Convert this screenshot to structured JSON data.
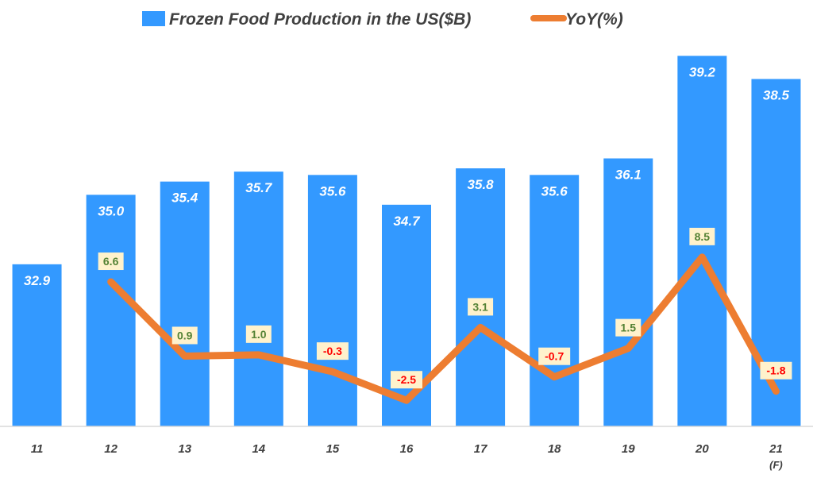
{
  "chart_data": {
    "type": "bar",
    "title": "",
    "categories": [
      "11",
      "12",
      "13",
      "14",
      "15",
      "16",
      "17",
      "18",
      "19",
      "20",
      "21"
    ],
    "category_notes": [
      "",
      "",
      "",
      "",
      "",
      "",
      "",
      "",
      "",
      "",
      "(F)"
    ],
    "series": [
      {
        "name": "Frozen Food Production in the US($B)",
        "type": "bar",
        "values": [
          32.9,
          35.0,
          35.4,
          35.7,
          35.6,
          34.7,
          35.8,
          35.6,
          36.1,
          39.2,
          38.5
        ],
        "labels": [
          "32.9",
          "35.0",
          "35.4",
          "35.7",
          "35.6",
          "34.7",
          "35.8",
          "35.6",
          "36.1",
          "39.2",
          "38.5"
        ]
      },
      {
        "name": "YoY(%)",
        "type": "line",
        "values": [
          null,
          6.6,
          0.9,
          1.0,
          -0.3,
          -2.5,
          3.1,
          -0.7,
          1.5,
          8.5,
          -1.8
        ],
        "labels": [
          "",
          "6.6",
          "0.9",
          "1.0",
          "-0.3",
          "-2.5",
          "3.1",
          "-0.7",
          "1.5",
          "8.5",
          "-1.8"
        ]
      }
    ],
    "bar_ylim": [
      28,
      40
    ],
    "line_ylim": [
      -4.5,
      26
    ],
    "legend_position": "top",
    "colors": {
      "bar": "#3399FF",
      "line": "#ED7D31",
      "positive_label": "#548235",
      "negative_label": "#FF0000",
      "label_box": "#FFF2CC",
      "axis": "#D9D9D9",
      "text": "#404040"
    }
  }
}
